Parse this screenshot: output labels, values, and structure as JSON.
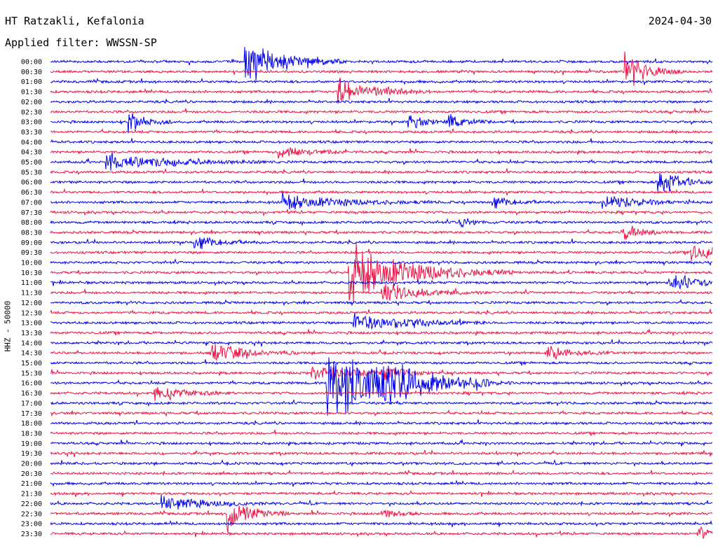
{
  "header": {
    "station": "HT Ratzakli, Kefalonia",
    "filter": "Applied filter: WWSSN-SP",
    "date": "2024-04-30",
    "channel": "HHZ - 50000"
  },
  "colors": {
    "even_trace": "#0000ee",
    "odd_trace": "#ee1144",
    "background": "#ffffff"
  },
  "chart_data": {
    "type": "line",
    "title": "HT Ratzakli, Kefalonia",
    "subtitle": "Applied filter: WWSSN-SP",
    "ylabel": "HHZ - 50000",
    "grid": false,
    "legend": "none",
    "row_labels": [
      "00:00",
      "00:30",
      "01:00",
      "01:30",
      "02:00",
      "02:30",
      "03:00",
      "03:30",
      "04:00",
      "04:30",
      "05:00",
      "05:30",
      "06:00",
      "06:30",
      "07:00",
      "07:30",
      "08:00",
      "08:30",
      "09:00",
      "09:30",
      "10:00",
      "10:30",
      "11:00",
      "11:30",
      "12:00",
      "12:30",
      "13:00",
      "13:30",
      "14:00",
      "14:30",
      "15:00",
      "15:30",
      "16:00",
      "16:30",
      "17:00",
      "17:30",
      "18:00",
      "18:30",
      "19:00",
      "19:30",
      "20:00",
      "20:30",
      "21:00",
      "21:30",
      "22:00",
      "22:30",
      "23:00",
      "23:30"
    ],
    "row_minutes": 30,
    "events": [
      {
        "row": 0,
        "minute": 8.8,
        "amp": 4.0,
        "dur": 1.5
      },
      {
        "row": 1,
        "minute": 26.0,
        "amp": 3.2,
        "dur": 0.9
      },
      {
        "row": 3,
        "minute": 13.0,
        "amp": 2.6,
        "dur": 1.4
      },
      {
        "row": 6,
        "minute": 3.5,
        "amp": 2.0,
        "dur": 0.7
      },
      {
        "row": 6,
        "minute": 16.2,
        "amp": 1.3,
        "dur": 0.8
      },
      {
        "row": 6,
        "minute": 18.0,
        "amp": 1.0,
        "dur": 0.8
      },
      {
        "row": 9,
        "minute": 10.3,
        "amp": 1.2,
        "dur": 1.2
      },
      {
        "row": 10,
        "minute": 2.5,
        "amp": 1.5,
        "dur": 2.5
      },
      {
        "row": 12,
        "minute": 27.5,
        "amp": 2.3,
        "dur": 1.0
      },
      {
        "row": 14,
        "minute": 10.5,
        "amp": 1.4,
        "dur": 2.4
      },
      {
        "row": 14,
        "minute": 20.0,
        "amp": 1.0,
        "dur": 1.0
      },
      {
        "row": 14,
        "minute": 25.0,
        "amp": 1.2,
        "dur": 1.5
      },
      {
        "row": 16,
        "minute": 18.5,
        "amp": 1.0,
        "dur": 0.6
      },
      {
        "row": 17,
        "minute": 26.0,
        "amp": 1.2,
        "dur": 0.8
      },
      {
        "row": 18,
        "minute": 6.5,
        "amp": 1.2,
        "dur": 1.2
      },
      {
        "row": 19,
        "minute": 29.0,
        "amp": 1.3,
        "dur": 1.5
      },
      {
        "row": 21,
        "minute": 13.5,
        "amp": 5.0,
        "dur": 2.5
      },
      {
        "row": 22,
        "minute": 28.0,
        "amp": 1.4,
        "dur": 1.5
      },
      {
        "row": 23,
        "minute": 15.0,
        "amp": 1.6,
        "dur": 1.6
      },
      {
        "row": 26,
        "minute": 13.7,
        "amp": 2.0,
        "dur": 2.0
      },
      {
        "row": 29,
        "minute": 7.3,
        "amp": 1.8,
        "dur": 1.3
      },
      {
        "row": 29,
        "minute": 22.5,
        "amp": 1.2,
        "dur": 1.0
      },
      {
        "row": 31,
        "minute": 11.8,
        "amp": 1.4,
        "dur": 1.5
      },
      {
        "row": 31,
        "minute": 15.0,
        "amp": 1.0,
        "dur": 1.0
      },
      {
        "row": 32,
        "minute": 12.5,
        "amp": 7.0,
        "dur": 2.5
      },
      {
        "row": 32,
        "minute": 15.0,
        "amp": 1.8,
        "dur": 2.0
      },
      {
        "row": 33,
        "minute": 4.7,
        "amp": 1.3,
        "dur": 1.2
      },
      {
        "row": 44,
        "minute": 5.0,
        "amp": 1.4,
        "dur": 1.8
      },
      {
        "row": 45,
        "minute": 8.0,
        "amp": 3.0,
        "dur": 1.0
      },
      {
        "row": 45,
        "minute": 15.0,
        "amp": 0.8,
        "dur": 0.8
      },
      {
        "row": 47,
        "minute": 29.3,
        "amp": 1.4,
        "dur": 0.7
      }
    ]
  }
}
